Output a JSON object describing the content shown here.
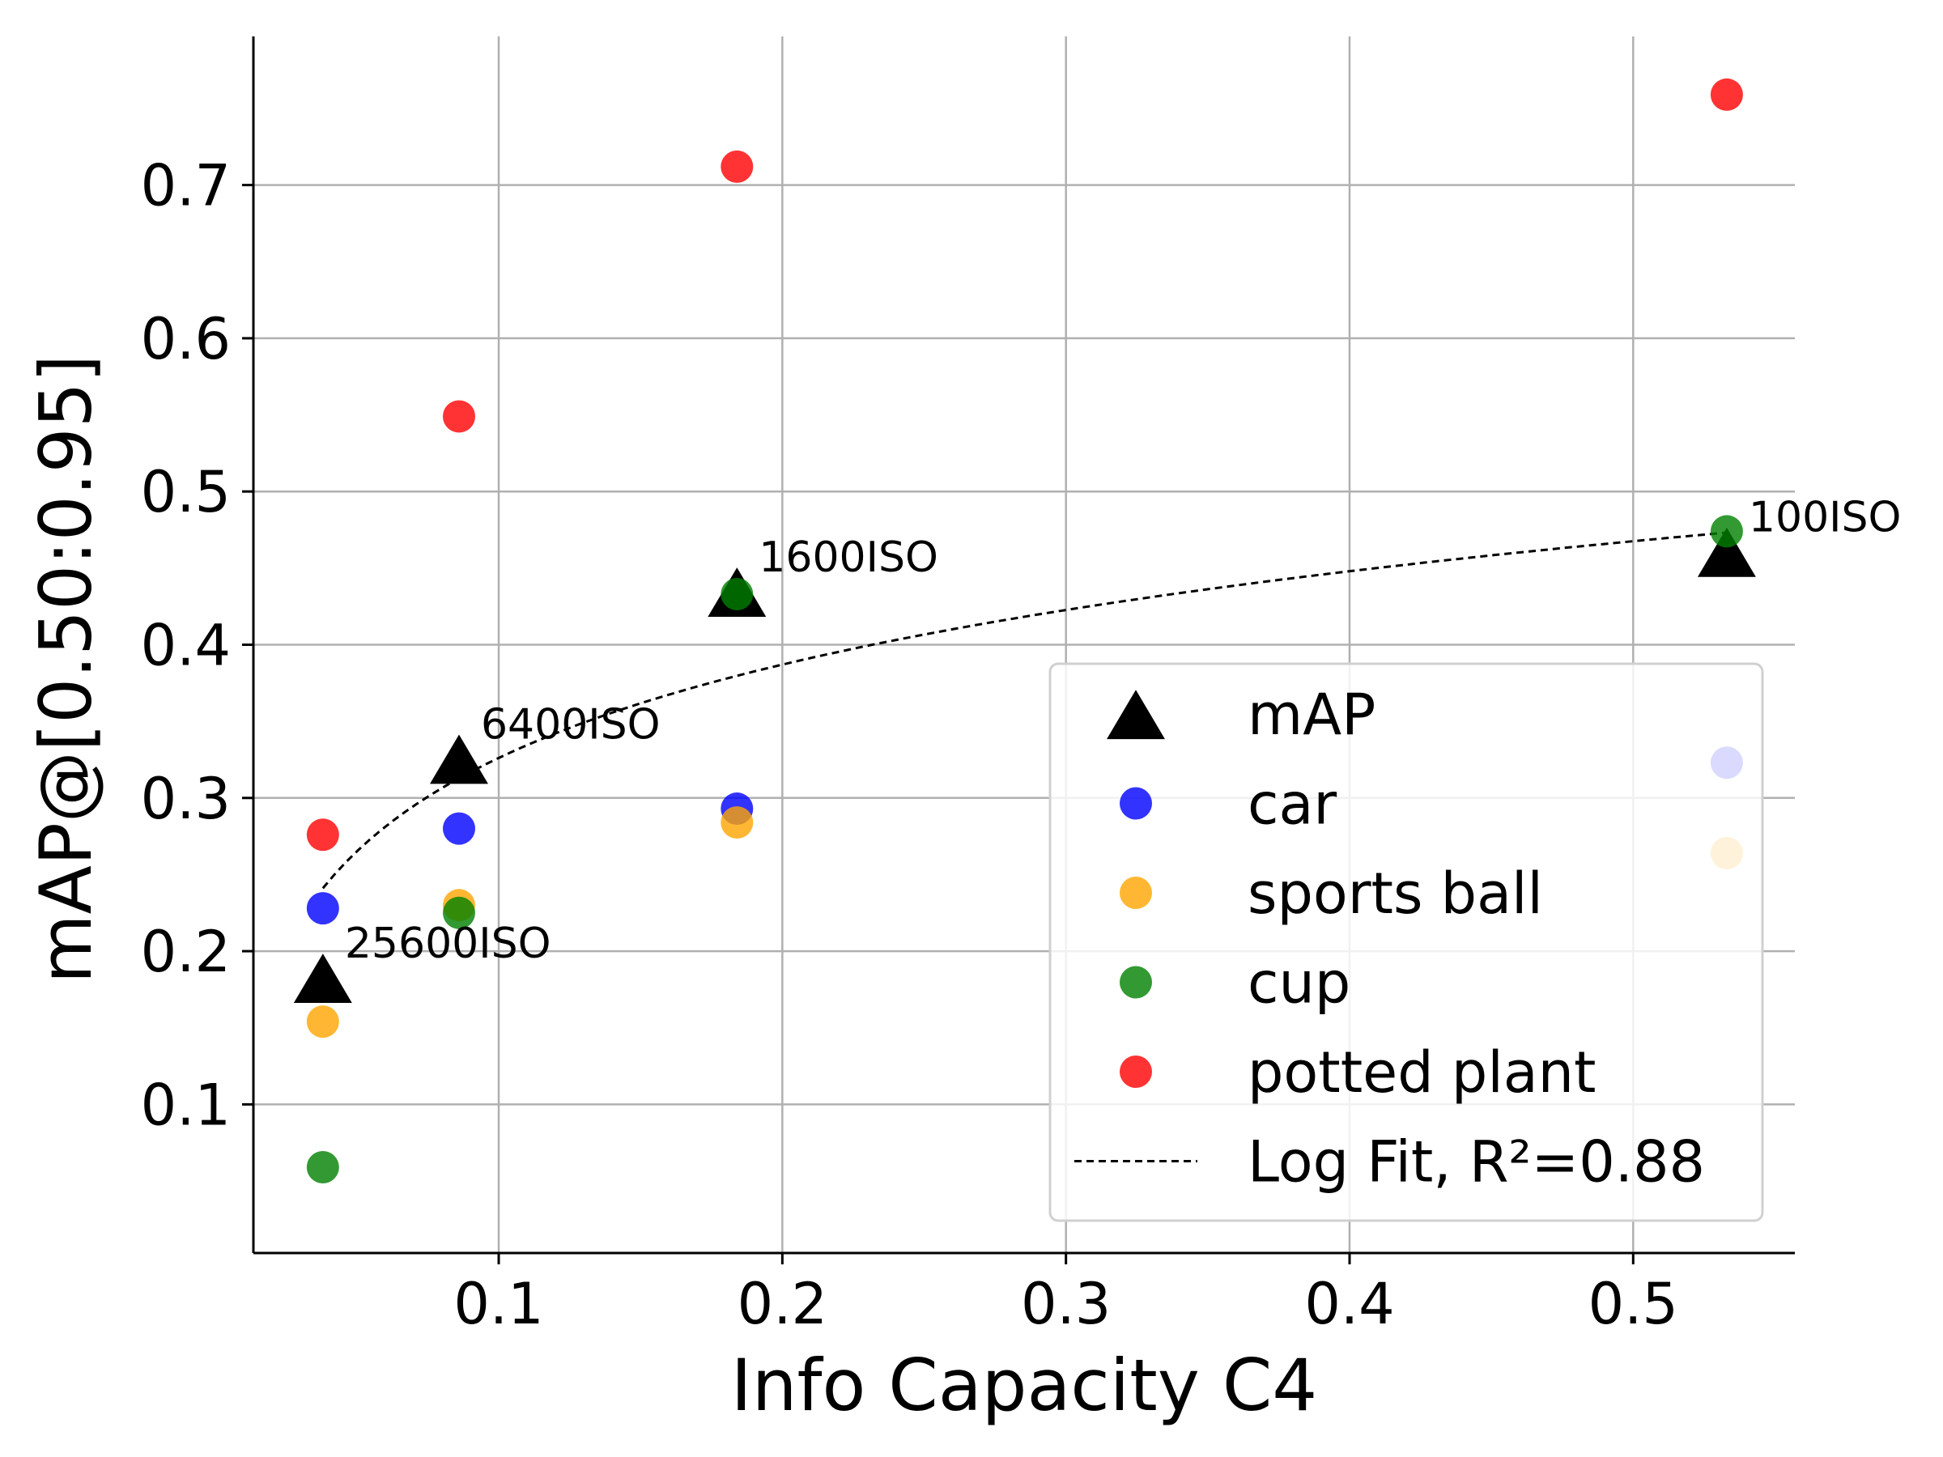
{
  "chart_data": {
    "type": "scatter",
    "title": "",
    "xlabel": "Info Capacity C4",
    "ylabel": "mAP@[0.50:0.95]",
    "xlim": [
      0.0135,
      0.557
    ],
    "ylim": [
      0.003,
      0.797
    ],
    "xticks": [
      0.1,
      0.2,
      0.3,
      0.4,
      0.5
    ],
    "xtick_labels": [
      "0.1",
      "0.2",
      "0.3",
      "0.4",
      "0.5"
    ],
    "yticks": [
      0.1,
      0.2,
      0.3,
      0.4,
      0.5,
      0.6,
      0.7
    ],
    "ytick_labels": [
      "0.1",
      "0.2",
      "0.3",
      "0.4",
      "0.5",
      "0.6",
      "0.7"
    ],
    "grid": true,
    "legend_position": "lower-right",
    "series": [
      {
        "name": "mAP",
        "marker": "triangle",
        "color": "#000000",
        "x": [
          0.038,
          0.086,
          0.184,
          0.533
        ],
        "y": [
          0.18,
          0.323,
          0.432,
          0.458
        ]
      },
      {
        "name": "car",
        "marker": "circle",
        "color": "#0000ff",
        "x": [
          0.038,
          0.086,
          0.184,
          0.533
        ],
        "y": [
          0.228,
          0.28,
          0.293,
          0.323
        ]
      },
      {
        "name": "sports ball",
        "marker": "circle",
        "color": "#ffa500",
        "x": [
          0.038,
          0.086,
          0.184,
          0.533
        ],
        "y": [
          0.154,
          0.23,
          0.284,
          0.264
        ]
      },
      {
        "name": "cup",
        "marker": "circle",
        "color": "#008000",
        "x": [
          0.038,
          0.086,
          0.184,
          0.533
        ],
        "y": [
          0.059,
          0.225,
          0.433,
          0.474
        ]
      },
      {
        "name": "potted plant",
        "marker": "circle",
        "color": "#ff0000",
        "x": [
          0.038,
          0.086,
          0.184,
          0.533
        ],
        "y": [
          0.276,
          0.549,
          0.712,
          0.759
        ]
      }
    ],
    "fit": {
      "name": "Log Fit, R²=0.88",
      "style": "dashed",
      "color": "#000000",
      "model": "y = a + b*ln(x)",
      "a": 0.5285,
      "b": 0.0879,
      "x_range": [
        0.038,
        0.533
      ]
    },
    "annotations": [
      {
        "text": "25600ISO",
        "x": 0.038,
        "y": 0.18
      },
      {
        "text": "6400ISO",
        "x": 0.086,
        "y": 0.323
      },
      {
        "text": "1600ISO",
        "x": 0.184,
        "y": 0.432
      },
      {
        "text": "100ISO",
        "x": 0.533,
        "y": 0.458
      }
    ]
  }
}
